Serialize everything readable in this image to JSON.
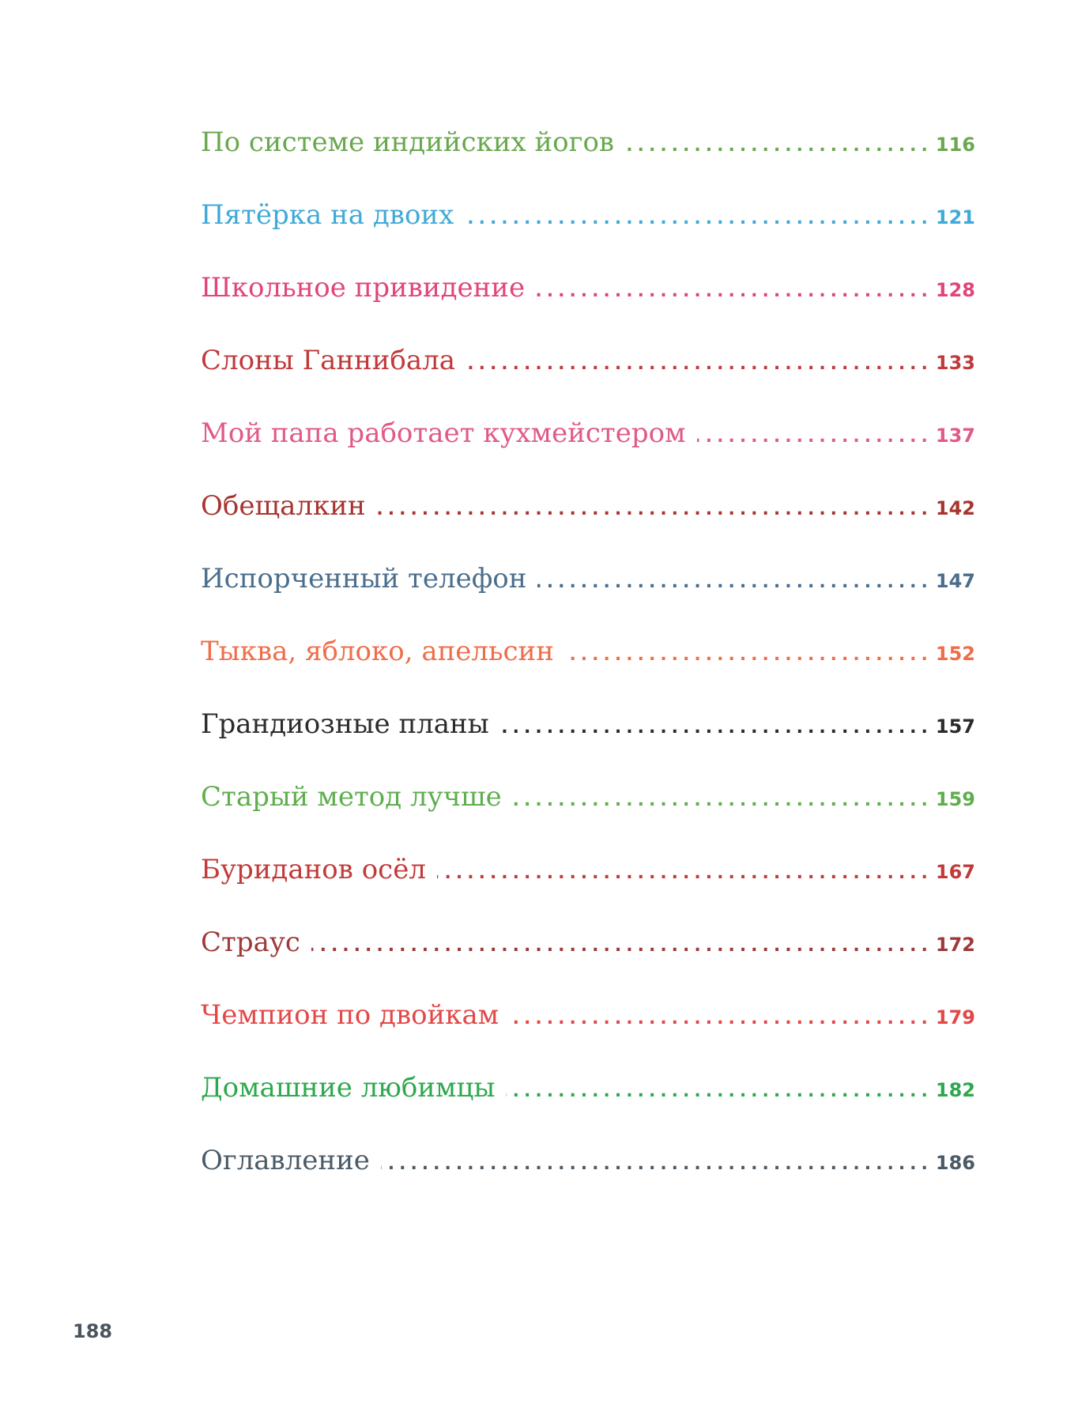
{
  "toc": [
    {
      "title": "По системе индийских йогов",
      "page": "116",
      "color": "#6aa84f"
    },
    {
      "title": "Пятёрка на двоих",
      "page": "121",
      "color": "#3fa9d8"
    },
    {
      "title": "Школьное привидение",
      "page": "128",
      "color": "#e0457b"
    },
    {
      "title": "Слоны Ганнибала",
      "page": "133",
      "color": "#c0393b"
    },
    {
      "title": "Мой папа работает кухмейстером",
      "page": "137",
      "color": "#e05a85"
    },
    {
      "title": "Обещалкин",
      "page": "142",
      "color": "#a8342f"
    },
    {
      "title": "Испорченный телефон",
      "page": "147",
      "color": "#4a6e8c"
    },
    {
      "title": "Тыква, яблоко, апельсин",
      "page": "152",
      "color": "#ef6e4a"
    },
    {
      "title": "Грандиозные планы",
      "page": "157",
      "color": "#2b2b2b"
    },
    {
      "title": "Старый метод лучше",
      "page": "159",
      "color": "#5fae4e"
    },
    {
      "title": "Буриданов осёл",
      "page": "167",
      "color": "#c23a3a"
    },
    {
      "title": "Страус",
      "page": "172",
      "color": "#9e3a3a"
    },
    {
      "title": "Чемпион по двойкам",
      "page": "179",
      "color": "#e34848"
    },
    {
      "title": "Домашние любимцы",
      "page": "182",
      "color": "#2ea84e"
    },
    {
      "title": "Оглавление",
      "page": "186",
      "color": "#4a5a66"
    }
  ],
  "folio": "188"
}
